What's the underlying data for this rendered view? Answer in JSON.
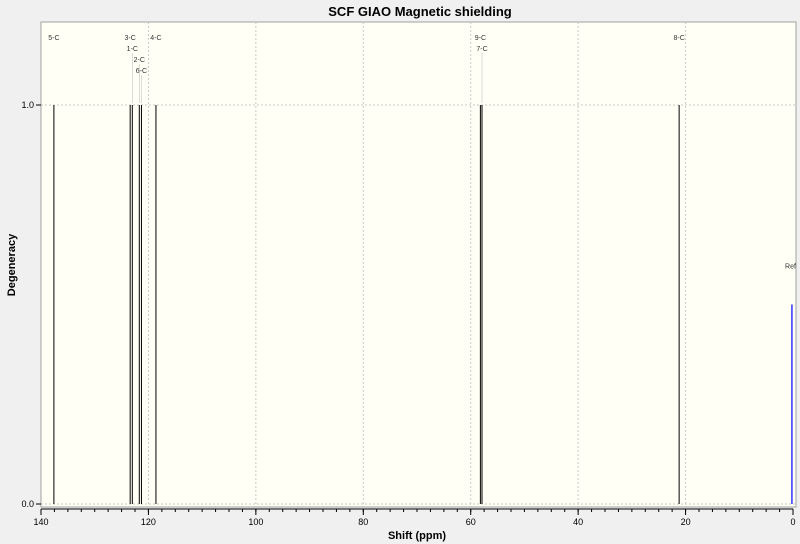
{
  "chart_data": {
    "type": "stick",
    "title": "SCF GIAO Magnetic shielding",
    "xlabel": "Shift (ppm)",
    "ylabel": "Degeneracy",
    "xlim": [
      140,
      0
    ],
    "ylim": [
      0,
      1.15
    ],
    "x_reversed": true,
    "grid": true,
    "xticks": [
      "140",
      "120",
      "100",
      "80",
      "60",
      "40",
      "20",
      "0"
    ],
    "yticks": [
      "0.0",
      "1.0"
    ],
    "colors": {
      "background": "#fffff5",
      "peak": "#000000",
      "reference": "#3333ff"
    },
    "peaks": [
      {
        "label": "5-C",
        "x": 137.6,
        "y": 1.0
      },
      {
        "label": "3-C",
        "x": 123.4,
        "y": 1.0
      },
      {
        "label": "1-C",
        "x": 123.0,
        "y": 1.0
      },
      {
        "label": "2-C",
        "x": 121.7,
        "y": 1.0
      },
      {
        "label": "6-C",
        "x": 121.3,
        "y": 1.0
      },
      {
        "label": "4-C",
        "x": 118.6,
        "y": 1.0
      },
      {
        "label": "9-C",
        "x": 58.2,
        "y": 1.0
      },
      {
        "label": "7-C",
        "x": 57.9,
        "y": 1.0
      },
      {
        "label": "8-C",
        "x": 21.2,
        "y": 1.0
      }
    ],
    "reference": {
      "label": "Ref",
      "x": 0.2,
      "y": 0.5
    }
  }
}
